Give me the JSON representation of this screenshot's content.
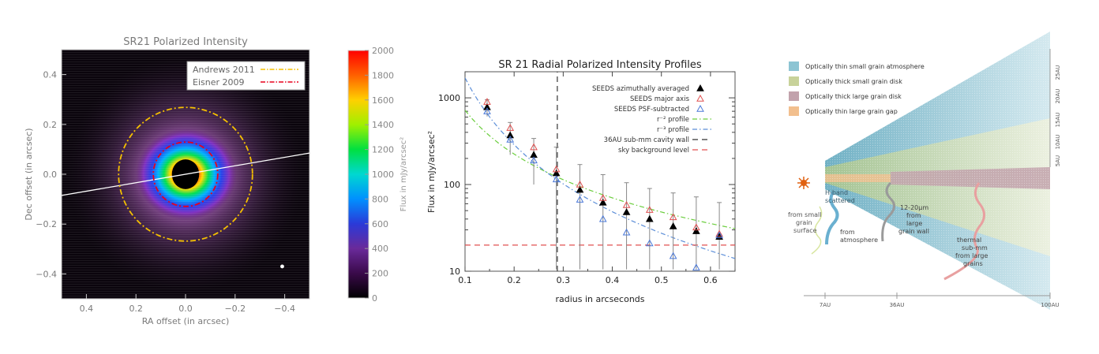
{
  "chart_data": [
    {
      "type": "heatmap",
      "title": "SR21 Polarized Intensity",
      "xlabel": "RA offset (in arcsec)",
      "ylabel": "Dec offset (in arcsec)",
      "xlim": [
        0.5,
        -0.5
      ],
      "ylim": [
        -0.5,
        0.5
      ],
      "xticks": [
        0.4,
        0.2,
        0.0,
        -0.2,
        -0.4
      ],
      "yticks": [
        -0.4,
        -0.2,
        0.0,
        0.2,
        0.4
      ],
      "xtick_labels": [
        "0.4",
        "0.2",
        "0.0",
        "−0.2",
        "−0.4"
      ],
      "ytick_labels": [
        "−0.4",
        "−0.2",
        "0.0",
        "0.2",
        "0.4"
      ],
      "legend": [
        {
          "label": "Andrews 2011",
          "color": "#f5c000",
          "dash": "dashdot"
        },
        {
          "label": "Eisner 2009",
          "color": "#e8001c",
          "dash": "dashdot"
        }
      ],
      "rings": [
        {
          "series": "Andrews 2011",
          "radius_arcsec": 0.27
        },
        {
          "series": "Eisner 2009",
          "radius_arcsec": 0.13
        }
      ],
      "major_axis_line": {
        "x": [
          0.5,
          -0.5
        ],
        "y": [
          -0.085,
          0.085
        ],
        "color": "#ffffff"
      },
      "beam": {
        "x": -0.39,
        "y": -0.37,
        "radius_arcsec": 0.022
      },
      "colorbar": {
        "label": "Flux in mJy/arcsec²",
        "range": [
          0,
          2000
        ],
        "ticks": [
          0,
          200,
          400,
          600,
          800,
          1000,
          1200,
          1400,
          1600,
          1800,
          2000
        ]
      }
    },
    {
      "type": "scatter",
      "title": "SR 21 Radial Polarized Intensity Profiles",
      "xlabel": "radius in arcseconds",
      "ylabel": "Flux in mJy/arcsec²",
      "xlim": [
        0.1,
        0.65
      ],
      "ylim": [
        10,
        2000
      ],
      "yscale": "log",
      "xticks": [
        0.1,
        0.2,
        0.3,
        0.4,
        0.5,
        0.6
      ],
      "yticks": [
        10,
        100,
        1000
      ],
      "legend_placement": "top-right",
      "series": [
        {
          "name": "SEEDS azimuthally averaged",
          "marker": "filled-triangle",
          "color": "#000000",
          "x": [
            0.145,
            0.192,
            0.24,
            0.286,
            0.334,
            0.381,
            0.429,
            0.476,
            0.524,
            0.571,
            0.618
          ],
          "y": [
            780,
            370,
            220,
            135,
            87,
            62,
            48,
            40,
            33,
            29,
            25
          ],
          "yerr_low": [
            620,
            240,
            120,
            85,
            75,
            56,
            45,
            38,
            32,
            28,
            24
          ],
          "yerr_high": [
            950,
            520,
            340,
            270,
            170,
            130,
            105,
            90,
            80,
            72,
            62
          ]
        },
        {
          "name": "SEEDS major axis",
          "marker": "open-triangle",
          "color": "#e05050",
          "x": [
            0.145,
            0.192,
            0.24,
            0.286,
            0.334,
            0.381,
            0.429,
            0.476,
            0.524,
            0.571,
            0.618
          ],
          "y": [
            900,
            450,
            270,
            150,
            100,
            70,
            58,
            51,
            42,
            32,
            27
          ]
        },
        {
          "name": "SEEDS PSF-subtracted",
          "marker": "open-triangle",
          "color": "#4a78d8",
          "x": [
            0.145,
            0.192,
            0.24,
            0.286,
            0.334,
            0.381,
            0.429,
            0.476,
            0.524,
            0.571,
            0.618
          ],
          "y": [
            700,
            330,
            190,
            115,
            67,
            40,
            28,
            21,
            15,
            11,
            26
          ]
        },
        {
          "name": "r⁻² profile",
          "line": "dashdot",
          "color": "#6acd3c",
          "x": [
            0.1,
            0.65
          ],
          "y": [
            720,
            31
          ]
        },
        {
          "name": "r⁻³ profile",
          "line": "dashdot",
          "color": "#5c8ed8",
          "x": [
            0.1,
            0.65
          ],
          "y": [
            1700,
            14
          ]
        },
        {
          "name": "36AU sub-mm cavity wall",
          "line": "dashed",
          "color": "#333333",
          "x": [
            0.288,
            0.288
          ],
          "y": [
            10,
            2000
          ]
        },
        {
          "name": "sky background level",
          "line": "dashed",
          "color": "#e05050",
          "x": [
            0.1,
            0.65
          ],
          "y": [
            20,
            20
          ]
        }
      ]
    }
  ],
  "diagram": {
    "legend": [
      {
        "label": "Optically thin small grain atmosphere",
        "color": "#8cc4d3"
      },
      {
        "label": "Optically thick small grain disk",
        "color": "#c8d29a"
      },
      {
        "label": "Optically thick large grain disk",
        "color": "#c2a2ac"
      },
      {
        "label": "Optically thin large grain gap",
        "color": "#f2bf8e"
      }
    ],
    "scale_labels": [
      "25AU",
      "20AU",
      "15AU",
      "10AU",
      "5AU"
    ],
    "bottom_labels": [
      "7AU",
      "36AU",
      "100AU"
    ],
    "annotations": [
      "H-band scattered",
      "from small grain surface",
      "from atmosphere",
      "12-20μm from large grain wall",
      "thermal sub-mm from large grains"
    ]
  }
}
